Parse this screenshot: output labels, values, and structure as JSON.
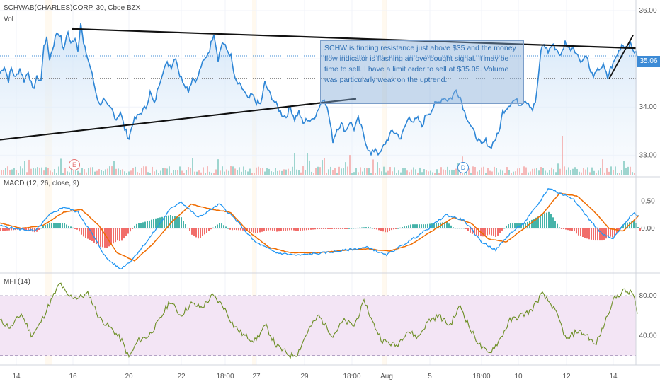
{
  "header": {
    "symbol_line": "SCHWAB(CHARLES)CORP, 30, Cboe BZX",
    "vol_label": "Vol",
    "macd_label": "MACD (12, 26, close, 9)",
    "mfi_label": "MFI (14)"
  },
  "annotation": {
    "text": "SCHW is finding resistance just above $35 and the money flow indicator is flashing an overbought signal. It may be time to sell.  I have a limit order to sell at $35.05. Volume was particularly weak on the uptrend."
  },
  "price_tag": "35.06",
  "markers": {
    "earnings": "E",
    "dividend": "D"
  },
  "colors": {
    "price_line": "#2e86d6",
    "macd_line": "#2196f3",
    "signal_line": "#ef6c00",
    "hist_pos": "#26a69a",
    "hist_neg": "#ef5350",
    "mfi_line": "#6b8e23",
    "mfi_band": "#f3e5f5",
    "trendline": "#111111"
  },
  "chart_data": [
    {
      "type": "line",
      "title": "SCHWAB(CHARLES)CORP, 30, Cboe BZX",
      "y_ticks": [
        36.0,
        35.0,
        34.0,
        33.0
      ],
      "ylim": [
        32.55,
        36.22
      ],
      "last_value": 35.06,
      "keypoints": [
        [
          0,
          34.7
        ],
        [
          6,
          34.85
        ],
        [
          12,
          34.55
        ],
        [
          16,
          34.8
        ],
        [
          22,
          34.6
        ],
        [
          28,
          34.8
        ],
        [
          34,
          34.55
        ],
        [
          40,
          34.75
        ],
        [
          46,
          34.35
        ],
        [
          52,
          34.6
        ],
        [
          58,
          34.55
        ],
        [
          62,
          35.3
        ],
        [
          66,
          35.4
        ],
        [
          70,
          35.0
        ],
        [
          75,
          35.25
        ],
        [
          80,
          35.55
        ],
        [
          85,
          35.5
        ],
        [
          90,
          35.15
        ],
        [
          95,
          35.6
        ],
        [
          100,
          35.3
        ],
        [
          106,
          35.45
        ],
        [
          110,
          35.2
        ],
        [
          114,
          35.75
        ],
        [
          118,
          35.3
        ],
        [
          122,
          35.1
        ],
        [
          128,
          34.8
        ],
        [
          134,
          34.4
        ],
        [
          140,
          34.05
        ],
        [
          146,
          34.15
        ],
        [
          152,
          34.0
        ],
        [
          158,
          33.95
        ],
        [
          164,
          33.75
        ],
        [
          170,
          33.9
        ],
        [
          176,
          33.55
        ],
        [
          182,
          33.35
        ],
        [
          188,
          33.7
        ],
        [
          194,
          33.8
        ],
        [
          200,
          33.9
        ],
        [
          206,
          34.0
        ],
        [
          212,
          34.3
        ],
        [
          218,
          34.05
        ],
        [
          224,
          34.45
        ],
        [
          230,
          34.75
        ],
        [
          236,
          34.9
        ],
        [
          242,
          34.85
        ],
        [
          248,
          35.05
        ],
        [
          254,
          34.65
        ],
        [
          260,
          34.5
        ],
        [
          266,
          34.35
        ],
        [
          272,
          34.6
        ],
        [
          278,
          34.55
        ],
        [
          284,
          34.85
        ],
        [
          290,
          35.0
        ],
        [
          296,
          35.2
        ],
        [
          302,
          35.55
        ],
        [
          308,
          35.0
        ],
        [
          314,
          35.35
        ],
        [
          320,
          35.2
        ],
        [
          326,
          35.05
        ],
        [
          332,
          34.55
        ],
        [
          338,
          34.45
        ],
        [
          344,
          34.35
        ],
        [
          350,
          34.15
        ],
        [
          356,
          34.25
        ],
        [
          362,
          34.1
        ],
        [
          368,
          34.05
        ],
        [
          374,
          34.5
        ],
        [
          380,
          34.3
        ],
        [
          386,
          34.15
        ],
        [
          392,
          34.0
        ],
        [
          398,
          33.85
        ],
        [
          404,
          33.8
        ],
        [
          410,
          34.0
        ],
        [
          416,
          33.75
        ],
        [
          422,
          33.9
        ],
        [
          428,
          33.65
        ],
        [
          434,
          33.75
        ],
        [
          440,
          33.7
        ],
        [
          446,
          33.85
        ],
        [
          452,
          34.05
        ],
        [
          458,
          34.2
        ],
        [
          464,
          33.85
        ],
        [
          470,
          33.3
        ],
        [
          476,
          33.55
        ],
        [
          482,
          33.65
        ],
        [
          488,
          33.5
        ],
        [
          494,
          33.7
        ],
        [
          500,
          33.55
        ],
        [
          506,
          33.75
        ],
        [
          512,
          33.5
        ],
        [
          518,
          33.2
        ],
        [
          524,
          33.0
        ],
        [
          530,
          33.15
        ],
        [
          536,
          33.0
        ],
        [
          542,
          33.2
        ],
        [
          548,
          33.35
        ],
        [
          554,
          33.5
        ],
        [
          560,
          33.45
        ],
        [
          566,
          33.35
        ],
        [
          572,
          33.6
        ],
        [
          578,
          33.8
        ],
        [
          584,
          33.7
        ],
        [
          590,
          33.75
        ],
        [
          596,
          33.6
        ],
        [
          602,
          33.85
        ],
        [
          608,
          33.9
        ],
        [
          614,
          34.05
        ],
        [
          620,
          34.1
        ],
        [
          626,
          34.2
        ],
        [
          632,
          34.15
        ],
        [
          638,
          34.2
        ],
        [
          644,
          34.35
        ],
        [
          650,
          34.2
        ],
        [
          656,
          33.9
        ],
        [
          662,
          33.7
        ],
        [
          668,
          33.5
        ],
        [
          674,
          33.35
        ],
        [
          680,
          33.2
        ],
        [
          686,
          33.3
        ],
        [
          692,
          33.15
        ],
        [
          698,
          33.3
        ],
        [
          704,
          33.45
        ],
        [
          710,
          33.9
        ],
        [
          716,
          34.0
        ],
        [
          722,
          34.1
        ],
        [
          728,
          34.15
        ],
        [
          734,
          34.05
        ],
        [
          740,
          34.15
        ],
        [
          746,
          34.1
        ],
        [
          752,
          33.95
        ],
        [
          756,
          34.1
        ],
        [
          760,
          34.55
        ],
        [
          764,
          35.2
        ],
        [
          768,
          35.3
        ],
        [
          774,
          35.15
        ],
        [
          780,
          35.3
        ],
        [
          786,
          35.2
        ],
        [
          792,
          35.05
        ],
        [
          798,
          35.35
        ],
        [
          804,
          35.2
        ],
        [
          810,
          35.25
        ],
        [
          816,
          35.05
        ],
        [
          822,
          34.95
        ],
        [
          828,
          35.1
        ],
        [
          834,
          34.7
        ],
        [
          840,
          34.65
        ],
        [
          846,
          34.8
        ],
        [
          852,
          34.85
        ],
        [
          858,
          34.6
        ],
        [
          862,
          34.8
        ],
        [
          866,
          34.9
        ],
        [
          872,
          35.1
        ],
        [
          878,
          35.3
        ],
        [
          884,
          35.25
        ],
        [
          890,
          35.3
        ],
        [
          896,
          35.15
        ],
        [
          900,
          35.06
        ]
      ]
    },
    {
      "type": "bar",
      "title": "Vol",
      "note": "volume histogram, unlabelled values"
    },
    {
      "type": "line",
      "title": "MACD (12, 26, close, 9)",
      "y_ticks": [
        0.5,
        0.0
      ],
      "ylim": [
        -0.8,
        0.85
      ],
      "series": [
        {
          "name": "MACD",
          "color": "#2196f3"
        },
        {
          "name": "Signal",
          "color": "#ef6c00"
        }
      ],
      "macd_keypoints": [
        [
          0,
          0.05
        ],
        [
          20,
          0.0
        ],
        [
          50,
          -0.05
        ],
        [
          70,
          0.25
        ],
        [
          90,
          0.4
        ],
        [
          110,
          0.3
        ],
        [
          130,
          -0.1
        ],
        [
          150,
          -0.55
        ],
        [
          170,
          -0.75
        ],
        [
          185,
          -0.6
        ],
        [
          210,
          -0.2
        ],
        [
          240,
          0.35
        ],
        [
          255,
          0.5
        ],
        [
          280,
          0.2
        ],
        [
          310,
          0.45
        ],
        [
          330,
          0.2
        ],
        [
          360,
          -0.25
        ],
        [
          390,
          -0.45
        ],
        [
          420,
          -0.5
        ],
        [
          460,
          -0.45
        ],
        [
          490,
          -0.4
        ],
        [
          520,
          -0.35
        ],
        [
          545,
          -0.5
        ],
        [
          570,
          -0.3
        ],
        [
          600,
          -0.05
        ],
        [
          630,
          0.25
        ],
        [
          655,
          0.15
        ],
        [
          680,
          -0.25
        ],
        [
          700,
          -0.4
        ],
        [
          720,
          -0.1
        ],
        [
          740,
          0.1
        ],
        [
          760,
          0.45
        ],
        [
          775,
          0.75
        ],
        [
          790,
          0.65
        ],
        [
          810,
          0.55
        ],
        [
          830,
          0.2
        ],
        [
          850,
          -0.1
        ],
        [
          865,
          -0.2
        ],
        [
          880,
          0.05
        ],
        [
          895,
          0.3
        ],
        [
          903,
          0.2
        ]
      ],
      "signal_keypoints": [
        [
          0,
          0.1
        ],
        [
          30,
          0.0
        ],
        [
          60,
          0.05
        ],
        [
          90,
          0.3
        ],
        [
          115,
          0.35
        ],
        [
          140,
          0.05
        ],
        [
          165,
          -0.45
        ],
        [
          190,
          -0.6
        ],
        [
          215,
          -0.3
        ],
        [
          245,
          0.15
        ],
        [
          270,
          0.45
        ],
        [
          300,
          0.35
        ],
        [
          325,
          0.3
        ],
        [
          350,
          -0.05
        ],
        [
          380,
          -0.35
        ],
        [
          410,
          -0.45
        ],
        [
          450,
          -0.45
        ],
        [
          490,
          -0.4
        ],
        [
          520,
          -0.38
        ],
        [
          550,
          -0.42
        ],
        [
          580,
          -0.3
        ],
        [
          610,
          -0.05
        ],
        [
          640,
          0.2
        ],
        [
          665,
          0.1
        ],
        [
          690,
          -0.2
        ],
        [
          715,
          -0.25
        ],
        [
          740,
          0.0
        ],
        [
          765,
          0.25
        ],
        [
          790,
          0.65
        ],
        [
          815,
          0.6
        ],
        [
          840,
          0.3
        ],
        [
          860,
          0.0
        ],
        [
          880,
          -0.05
        ],
        [
          903,
          0.25
        ]
      ]
    },
    {
      "type": "line",
      "title": "MFI (14)",
      "y_ticks": [
        80.0,
        40.0
      ],
      "ylim": [
        12,
        100
      ],
      "bands": [
        20,
        80
      ],
      "keypoints": [
        [
          0,
          55
        ],
        [
          15,
          48
        ],
        [
          30,
          62
        ],
        [
          45,
          40
        ],
        [
          55,
          50
        ],
        [
          70,
          72
        ],
        [
          85,
          93
        ],
        [
          95,
          80
        ],
        [
          110,
          78
        ],
        [
          125,
          82
        ],
        [
          140,
          58
        ],
        [
          160,
          45
        ],
        [
          172,
          35
        ],
        [
          182,
          18
        ],
        [
          195,
          35
        ],
        [
          210,
          40
        ],
        [
          225,
          55
        ],
        [
          240,
          75
        ],
        [
          255,
          60
        ],
        [
          270,
          72
        ],
        [
          285,
          68
        ],
        [
          300,
          80
        ],
        [
          315,
          70
        ],
        [
          330,
          50
        ],
        [
          345,
          40
        ],
        [
          360,
          35
        ],
        [
          375,
          50
        ],
        [
          390,
          30
        ],
        [
          400,
          25
        ],
        [
          410,
          20
        ],
        [
          420,
          22
        ],
        [
          435,
          45
        ],
        [
          450,
          60
        ],
        [
          470,
          40
        ],
        [
          485,
          55
        ],
        [
          500,
          50
        ],
        [
          515,
          75
        ],
        [
          525,
          55
        ],
        [
          540,
          35
        ],
        [
          560,
          30
        ],
        [
          575,
          45
        ],
        [
          590,
          38
        ],
        [
          605,
          55
        ],
        [
          620,
          60
        ],
        [
          635,
          50
        ],
        [
          650,
          70
        ],
        [
          665,
          45
        ],
        [
          680,
          28
        ],
        [
          690,
          22
        ],
        [
          705,
          35
        ],
        [
          720,
          55
        ],
        [
          735,
          60
        ],
        [
          750,
          65
        ],
        [
          765,
          82
        ],
        [
          780,
          70
        ],
        [
          790,
          55
        ],
        [
          800,
          35
        ],
        [
          815,
          45
        ],
        [
          830,
          40
        ],
        [
          840,
          30
        ],
        [
          850,
          45
        ],
        [
          865,
          75
        ],
        [
          880,
          85
        ],
        [
          895,
          82
        ],
        [
          900,
          60
        ]
      ]
    }
  ],
  "time_axis": {
    "labels": [
      "14",
      "16",
      "20",
      "22",
      "18:00",
      "27",
      "29",
      "18:00",
      "Aug",
      "5",
      "18:00",
      "10",
      "12",
      "14"
    ]
  }
}
